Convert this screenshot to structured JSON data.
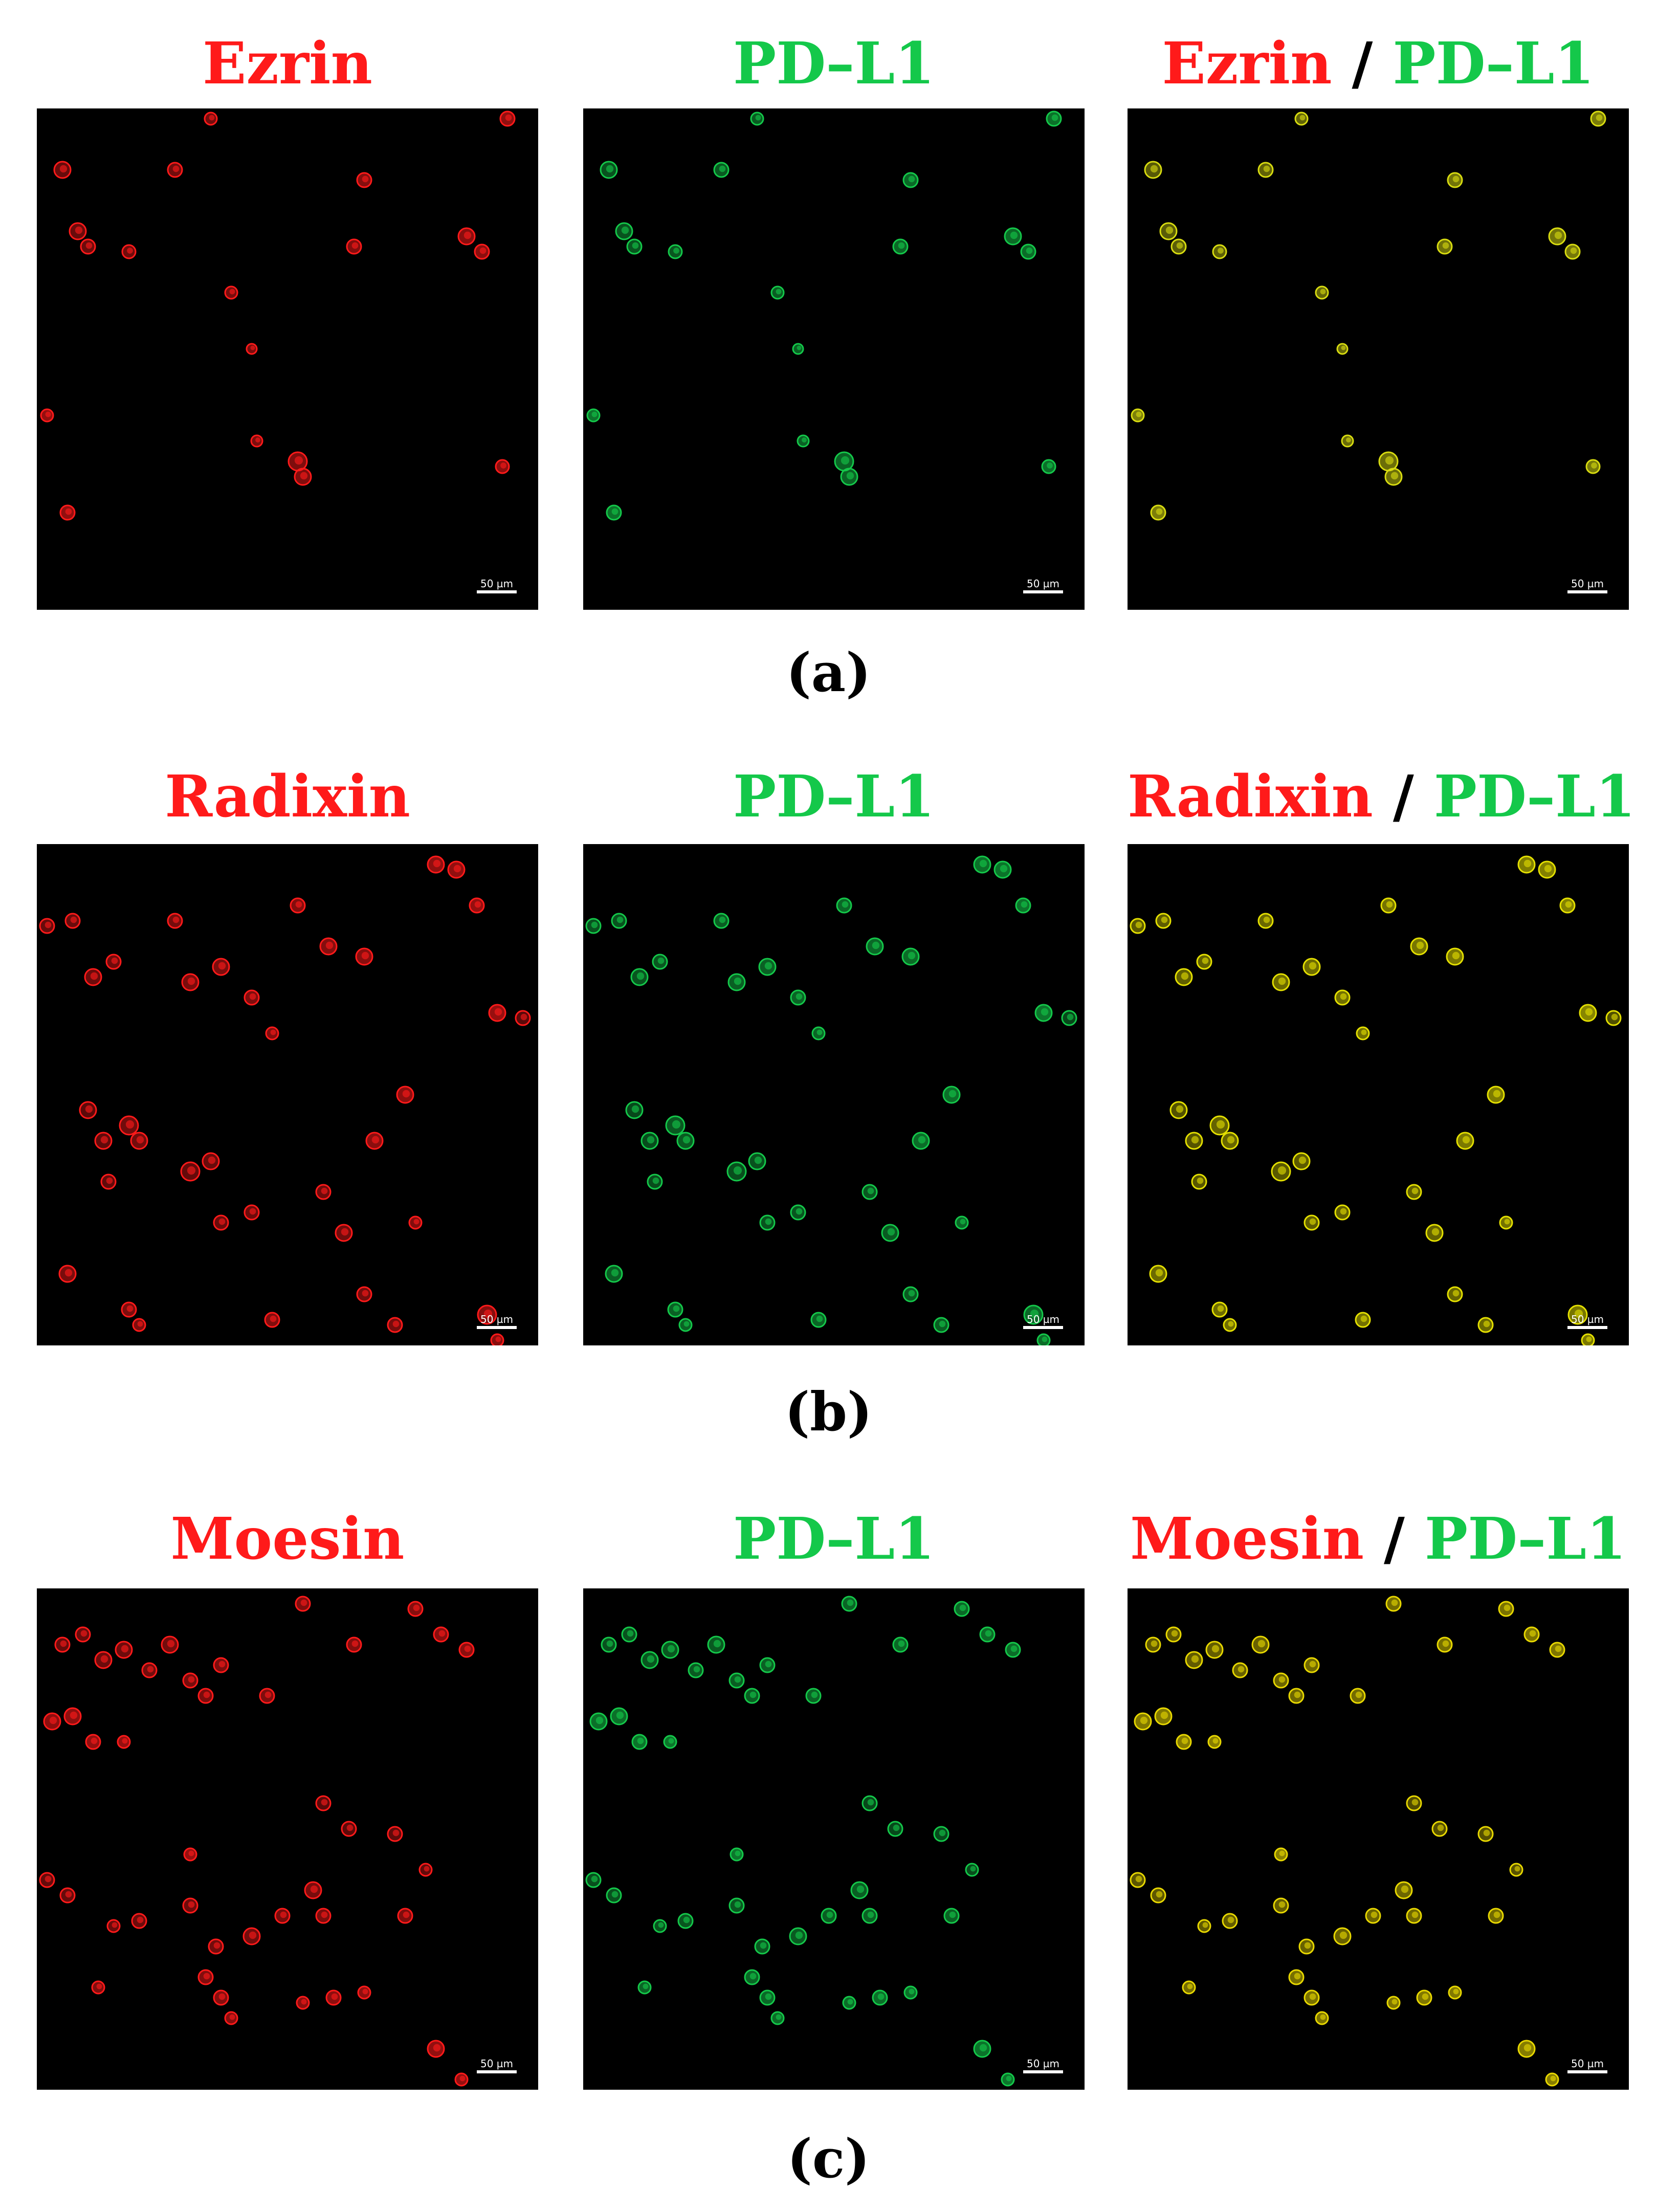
{
  "colors": {
    "red": "#ff1a1a",
    "green": "#14c84a",
    "yellow": "#e8e000",
    "black": "#000000"
  },
  "scale_bar": "50 µm",
  "rows": [
    {
      "caption": "(a)",
      "protein": "Ezrin",
      "marker": "PD–L1",
      "separator": "/"
    },
    {
      "caption": "(b)",
      "protein": "Radixin",
      "marker": "PD–L1",
      "separator": "/"
    },
    {
      "caption": "(c)",
      "protein": "Moesin",
      "marker": "PD–L1",
      "separator": "/"
    }
  ]
}
